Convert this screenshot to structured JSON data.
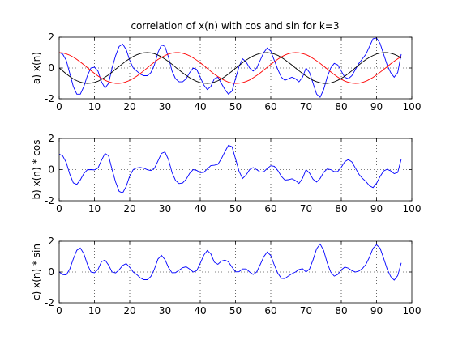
{
  "title": "correlation of x(n) with cos and sin for k=3",
  "colors": {
    "x": "#0000ff",
    "cos": "#ff0000",
    "sin": "#000000",
    "axis": "#000000",
    "grid": "#000000",
    "background": "#ffffff"
  },
  "chart_data": [
    {
      "type": "line",
      "title": "correlation of x(n) with cos and sin for k=3",
      "xlabel": "",
      "ylabel": "a) x(n)",
      "xlim": [
        0,
        100
      ],
      "ylim": [
        -2,
        2
      ],
      "xticks": [
        0,
        10,
        20,
        30,
        40,
        50,
        60,
        70,
        80,
        90,
        100
      ],
      "yticks": [
        -2,
        0,
        2
      ],
      "grid": true,
      "x": [
        0,
        1,
        2,
        3,
        4,
        5,
        6,
        7,
        8,
        9,
        10,
        11,
        12,
        13,
        14,
        15,
        16,
        17,
        18,
        19,
        20,
        21,
        22,
        23,
        24,
        25,
        26,
        27,
        28,
        29,
        30,
        31,
        32,
        33,
        34,
        35,
        36,
        37,
        38,
        39,
        40,
        41,
        42,
        43,
        44,
        45,
        46,
        47,
        48,
        49,
        50,
        51,
        52,
        53,
        54,
        55,
        56,
        57,
        58,
        59,
        60,
        61,
        62,
        63,
        64,
        65,
        66,
        67,
        68,
        69,
        70,
        71,
        72,
        73,
        74,
        75,
        76,
        77,
        78,
        79,
        80,
        81,
        82,
        83,
        84,
        85,
        86,
        87,
        88,
        89,
        90,
        91,
        92,
        93,
        94,
        95,
        96,
        97
      ],
      "series": [
        {
          "values": [
            1.0,
            0.9,
            0.5,
            -0.35,
            -1.2,
            -1.7,
            -1.7,
            -1.2,
            -0.5,
            0.0,
            0.05,
            -0.2,
            -0.9,
            -1.3,
            -1.0,
            0.0,
            0.8,
            1.4,
            1.55,
            1.2,
            0.5,
            0.0,
            -0.2,
            -0.4,
            -0.5,
            -0.5,
            -0.3,
            0.2,
            1.0,
            1.5,
            1.4,
            0.7,
            -0.2,
            -0.7,
            -0.9,
            -0.9,
            -0.7,
            -0.3,
            0.0,
            -0.1,
            -0.6,
            -1.1,
            -1.4,
            -1.2,
            -0.7,
            -0.6,
            -1.0,
            -1.4,
            -1.7,
            -1.5,
            -0.7,
            0.1,
            0.6,
            0.4,
            0.0,
            -0.2,
            0.0,
            0.5,
            1.0,
            1.3,
            1.1,
            0.5,
            -0.1,
            -0.6,
            -0.8,
            -0.7,
            -0.6,
            -0.7,
            -0.9,
            -0.6,
            0.0,
            -0.3,
            -1.0,
            -1.7,
            -1.9,
            -1.4,
            -0.6,
            0.0,
            0.3,
            0.2,
            -0.2,
            -0.6,
            -0.7,
            -0.5,
            -0.1,
            0.3,
            0.6,
            0.9,
            1.4,
            1.9,
            1.95,
            1.6,
            0.9,
            0.2,
            -0.3,
            -0.6,
            -0.3,
            0.9
          ],
          "color": "#0000ff"
        },
        {
          "values": [
            1.0,
            0.98,
            0.92,
            0.83,
            0.71,
            0.56,
            0.39,
            0.21,
            0.02,
            -0.17,
            -0.35,
            -0.52,
            -0.67,
            -0.8,
            -0.89,
            -0.96,
            -1.0,
            -1.0,
            -0.97,
            -0.9,
            -0.81,
            -0.68,
            -0.53,
            -0.36,
            -0.18,
            0.01,
            0.2,
            0.38,
            0.55,
            0.69,
            0.81,
            0.91,
            0.97,
            1.0,
            1.0,
            0.96,
            0.89,
            0.79,
            0.66,
            0.51,
            0.34,
            0.16,
            -0.03,
            -0.22,
            -0.4,
            -0.56,
            -0.7,
            -0.82,
            -0.92,
            -0.98,
            -1.0,
            -0.99,
            -0.95,
            -0.88,
            -0.78,
            -0.64,
            -0.49,
            -0.32,
            -0.14,
            0.05,
            0.23,
            0.41,
            0.57,
            0.72,
            0.84,
            0.93,
            0.98,
            1.0,
            0.99,
            0.94,
            0.87,
            0.76,
            0.62,
            0.47,
            0.3,
            0.12,
            -0.06,
            -0.25,
            -0.43,
            -0.59,
            -0.73,
            -0.85,
            -0.93,
            -0.98,
            -1.0,
            -0.99,
            -0.94,
            -0.86,
            -0.74,
            -0.61,
            -0.45,
            -0.28,
            -0.1,
            0.08,
            0.27,
            0.44,
            0.6,
            0.74
          ],
          "color": "#ff0000"
        },
        {
          "values": [
            0.0,
            -0.19,
            -0.38,
            -0.55,
            -0.71,
            -0.83,
            -0.92,
            -0.98,
            -1.0,
            -0.98,
            -0.94,
            -0.86,
            -0.74,
            -0.6,
            -0.45,
            -0.27,
            -0.08,
            0.1,
            0.28,
            0.46,
            0.61,
            0.75,
            0.86,
            0.94,
            0.99,
            1.0,
            0.98,
            0.93,
            0.84,
            0.72,
            0.58,
            0.42,
            0.24,
            0.05,
            -0.13,
            -0.31,
            -0.48,
            -0.63,
            -0.76,
            -0.87,
            -0.95,
            -0.99,
            -1.0,
            -0.98,
            -0.92,
            -0.83,
            -0.71,
            -0.56,
            -0.39,
            -0.21,
            -0.02,
            0.16,
            0.34,
            0.51,
            0.66,
            0.78,
            0.88,
            0.95,
            0.99,
            1.0,
            0.97,
            0.91,
            0.82,
            0.69,
            0.54,
            0.37,
            0.19,
            0.0,
            -0.18,
            -0.36,
            -0.52,
            -0.67,
            -0.8,
            -0.89,
            -0.96,
            -1.0,
            -1.0,
            -0.97,
            -0.9,
            -0.8,
            -0.68,
            -0.53,
            -0.36,
            -0.18,
            0.01,
            0.2,
            0.38,
            0.55,
            0.69,
            0.81,
            0.91,
            0.97,
            1.0,
            1.0,
            0.96,
            0.89,
            0.79,
            0.66
          ],
          "color": "#000000"
        }
      ]
    },
    {
      "type": "line",
      "xlabel": "",
      "ylabel": "b) x(n) * cos",
      "xlim": [
        0,
        100
      ],
      "ylim": [
        -2,
        2
      ],
      "xticks": [
        0,
        10,
        20,
        30,
        40,
        50,
        60,
        70,
        80,
        90,
        100
      ],
      "yticks": [
        -2,
        0,
        2
      ],
      "grid": true,
      "x": [
        0,
        1,
        2,
        3,
        4,
        5,
        6,
        7,
        8,
        9,
        10,
        11,
        12,
        13,
        14,
        15,
        16,
        17,
        18,
        19,
        20,
        21,
        22,
        23,
        24,
        25,
        26,
        27,
        28,
        29,
        30,
        31,
        32,
        33,
        34,
        35,
        36,
        37,
        38,
        39,
        40,
        41,
        42,
        43,
        44,
        45,
        46,
        47,
        48,
        49,
        50,
        51,
        52,
        53,
        54,
        55,
        56,
        57,
        58,
        59,
        60,
        61,
        62,
        63,
        64,
        65,
        66,
        67,
        68,
        69,
        70,
        71,
        72,
        73,
        74,
        75,
        76,
        77,
        78,
        79,
        80,
        81,
        82,
        83,
        84,
        85,
        86,
        87,
        88,
        89,
        90,
        91,
        92,
        93,
        94,
        95,
        96,
        97
      ],
      "series": [
        {
          "values": [
            1.0,
            0.88,
            0.46,
            -0.29,
            -0.85,
            -0.95,
            -0.66,
            -0.25,
            -0.01,
            0.0,
            -0.02,
            0.1,
            0.6,
            1.04,
            0.89,
            0.0,
            -0.8,
            -1.4,
            -1.5,
            -1.08,
            -0.41,
            0.0,
            0.11,
            0.14,
            0.09,
            -0.01,
            -0.06,
            0.08,
            0.55,
            1.04,
            1.13,
            0.64,
            -0.19,
            -0.7,
            -0.9,
            -0.86,
            -0.62,
            -0.24,
            0.0,
            -0.05,
            -0.2,
            -0.18,
            0.04,
            0.26,
            0.28,
            0.34,
            0.7,
            1.15,
            1.56,
            1.47,
            0.7,
            -0.1,
            -0.57,
            -0.35,
            0.0,
            0.13,
            0.0,
            -0.16,
            -0.14,
            0.07,
            0.25,
            0.21,
            -0.06,
            -0.43,
            -0.67,
            -0.65,
            -0.59,
            -0.7,
            -0.89,
            -0.56,
            0.0,
            -0.23,
            -0.62,
            -0.8,
            -0.57,
            -0.17,
            0.04,
            0.0,
            -0.13,
            -0.12,
            0.15,
            0.51,
            0.65,
            0.49,
            0.1,
            -0.3,
            -0.56,
            -0.77,
            -1.04,
            -1.16,
            -0.88,
            -0.45,
            -0.09,
            0.02,
            -0.08,
            -0.26,
            -0.18,
            0.67
          ],
          "color": "#0000ff"
        }
      ]
    },
    {
      "type": "line",
      "xlabel": "",
      "ylabel": "c) x(n) * sin",
      "xlim": [
        0,
        100
      ],
      "ylim": [
        -2,
        2
      ],
      "xticks": [
        0,
        10,
        20,
        30,
        40,
        50,
        60,
        70,
        80,
        90,
        100
      ],
      "yticks": [
        -2,
        0,
        2
      ],
      "grid": true,
      "x": [
        0,
        1,
        2,
        3,
        4,
        5,
        6,
        7,
        8,
        9,
        10,
        11,
        12,
        13,
        14,
        15,
        16,
        17,
        18,
        19,
        20,
        21,
        22,
        23,
        24,
        25,
        26,
        27,
        28,
        29,
        30,
        31,
        32,
        33,
        34,
        35,
        36,
        37,
        38,
        39,
        40,
        41,
        42,
        43,
        44,
        45,
        46,
        47,
        48,
        49,
        50,
        51,
        52,
        53,
        54,
        55,
        56,
        57,
        58,
        59,
        60,
        61,
        62,
        63,
        64,
        65,
        66,
        67,
        68,
        69,
        70,
        71,
        72,
        73,
        74,
        75,
        76,
        77,
        78,
        79,
        80,
        81,
        82,
        83,
        84,
        85,
        86,
        87,
        88,
        89,
        90,
        91,
        92,
        93,
        94,
        95,
        96,
        97
      ],
      "series": [
        {
          "values": [
            0.0,
            -0.17,
            -0.19,
            0.19,
            0.85,
            1.41,
            1.56,
            1.18,
            0.5,
            0.0,
            -0.05,
            0.17,
            0.67,
            0.78,
            0.45,
            0.0,
            -0.06,
            0.14,
            0.43,
            0.55,
            0.31,
            0.0,
            -0.17,
            -0.38,
            -0.5,
            -0.5,
            -0.29,
            0.19,
            0.84,
            1.08,
            0.81,
            0.29,
            -0.05,
            -0.04,
            0.12,
            0.28,
            0.34,
            0.19,
            0.0,
            0.09,
            0.57,
            1.09,
            1.4,
            1.18,
            0.64,
            0.5,
            0.71,
            0.78,
            0.66,
            0.32,
            0.01,
            0.02,
            0.2,
            0.2,
            0.0,
            -0.16,
            0.0,
            0.48,
            0.99,
            1.3,
            1.07,
            0.46,
            -0.08,
            -0.41,
            -0.43,
            -0.26,
            -0.11,
            0.0,
            0.16,
            0.22,
            0.0,
            0.2,
            0.8,
            1.51,
            1.82,
            1.4,
            0.6,
            0.0,
            -0.27,
            -0.16,
            0.14,
            0.32,
            0.25,
            0.09,
            0.0,
            0.06,
            0.23,
            0.5,
            0.97,
            1.54,
            1.77,
            1.55,
            0.9,
            0.2,
            -0.29,
            -0.53,
            -0.24,
            0.59
          ],
          "color": "#0000ff"
        }
      ]
    }
  ]
}
